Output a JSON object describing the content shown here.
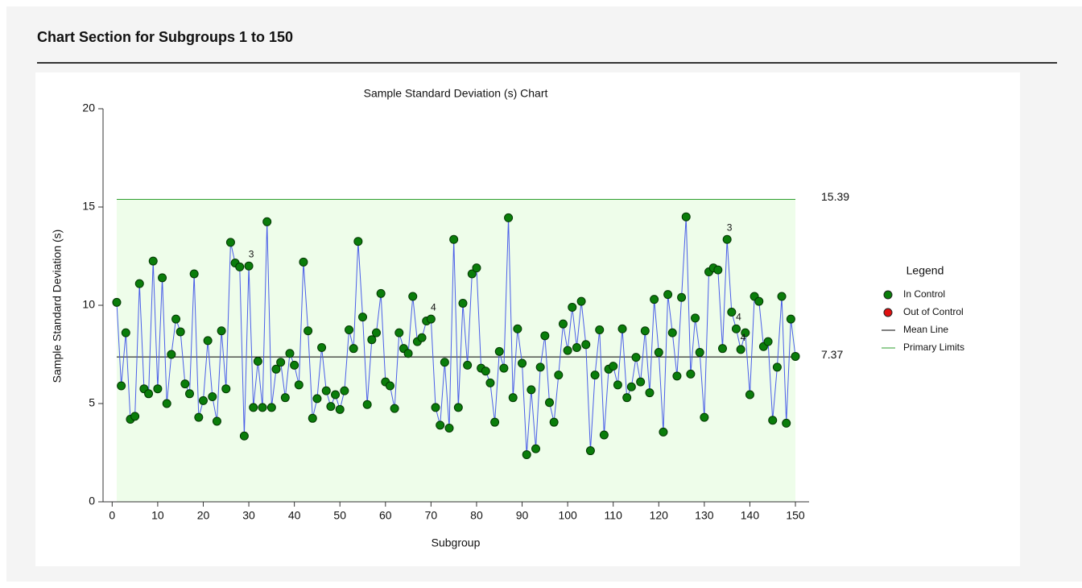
{
  "header": {
    "title": "Chart Section for Subgroups 1 to 150"
  },
  "chart_data": {
    "type": "control",
    "title": "Sample Standard Deviation (s) Chart",
    "x_label": "Subgroup",
    "y_label": "Sample Standard Deviation (s)",
    "xlim": [
      -2,
      153
    ],
    "ylim": [
      0,
      20
    ],
    "xticks": [
      0,
      10,
      20,
      30,
      40,
      50,
      60,
      70,
      80,
      90,
      100,
      110,
      120,
      130,
      140,
      150
    ],
    "yticks": [
      0,
      5,
      10,
      15,
      20
    ],
    "x": [
      1,
      2,
      3,
      4,
      5,
      6,
      7,
      8,
      9,
      10,
      11,
      12,
      13,
      14,
      15,
      16,
      17,
      18,
      19,
      20,
      21,
      22,
      23,
      24,
      25,
      26,
      27,
      28,
      29,
      30,
      31,
      32,
      33,
      34,
      35,
      36,
      37,
      38,
      39,
      40,
      41,
      42,
      43,
      44,
      45,
      46,
      47,
      48,
      49,
      50,
      51,
      52,
      53,
      54,
      55,
      56,
      57,
      58,
      59,
      60,
      61,
      62,
      63,
      64,
      65,
      66,
      67,
      68,
      69,
      70,
      71,
      72,
      73,
      74,
      75,
      76,
      77,
      78,
      79,
      80,
      81,
      82,
      83,
      84,
      85,
      86,
      87,
      88,
      89,
      90,
      91,
      92,
      93,
      94,
      95,
      96,
      97,
      98,
      99,
      100,
      101,
      102,
      103,
      104,
      105,
      106,
      107,
      108,
      109,
      110,
      111,
      112,
      113,
      114,
      115,
      116,
      117,
      118,
      119,
      120,
      121,
      122,
      123,
      124,
      125,
      126,
      127,
      128,
      129,
      130,
      131,
      132,
      133,
      134,
      135,
      136,
      137,
      138,
      139,
      140,
      141,
      142,
      143,
      144,
      145,
      146,
      147,
      148,
      149,
      150
    ],
    "values": [
      10.15,
      5.9,
      8.6,
      4.2,
      4.35,
      11.1,
      5.75,
      5.5,
      12.25,
      5.75,
      11.4,
      5.0,
      7.5,
      9.3,
      8.65,
      6.0,
      5.5,
      11.6,
      4.3,
      5.15,
      8.2,
      5.35,
      4.1,
      8.7,
      5.75,
      13.2,
      12.15,
      11.95,
      3.35,
      12.0,
      4.8,
      7.15,
      4.8,
      14.25,
      4.8,
      6.75,
      7.1,
      5.3,
      7.55,
      6.95,
      5.95,
      12.2,
      8.7,
      4.25,
      5.25,
      7.85,
      5.65,
      4.85,
      5.45,
      4.7,
      5.65,
      8.75,
      7.8,
      13.25,
      9.4,
      4.95,
      8.25,
      8.6,
      10.6,
      6.1,
      5.9,
      4.75,
      8.6,
      7.8,
      7.55,
      10.45,
      8.15,
      8.35,
      9.2,
      9.3,
      4.8,
      3.9,
      7.1,
      3.75,
      13.35,
      4.8,
      10.1,
      6.95,
      11.6,
      11.9,
      6.8,
      6.65,
      6.05,
      4.05,
      7.65,
      6.8,
      14.45,
      5.3,
      8.8,
      7.05,
      2.4,
      5.7,
      2.7,
      6.85,
      8.45,
      5.05,
      4.05,
      6.45,
      9.05,
      7.7,
      9.9,
      7.85,
      10.2,
      8.0,
      2.6,
      6.45,
      8.75,
      3.4,
      6.75,
      6.9,
      5.95,
      8.8,
      5.3,
      5.85,
      7.35,
      6.1,
      8.7,
      5.55,
      10.3,
      7.6,
      3.55,
      10.55,
      8.6,
      6.4,
      10.4,
      14.5,
      6.5,
      9.35,
      7.6,
      4.3,
      11.7,
      11.9,
      11.8,
      7.8,
      13.35,
      9.65,
      8.8,
      7.75,
      8.6,
      5.45,
      10.45,
      10.2,
      7.9,
      8.15,
      4.15,
      6.85,
      10.45,
      4.0,
      9.3,
      7.4
    ],
    "line_color": "#4a5ee8",
    "marker_color": "#0a7d0a",
    "mean": 7.37,
    "upper_limit": 15.39,
    "lower_limit": 0,
    "mean_color": "#000000",
    "limit_color": "#2e9e2e",
    "zone_color": "#eefdea",
    "annotations": [
      {
        "x": 30,
        "text": "3"
      },
      {
        "x": 70,
        "text": "4"
      },
      {
        "x": 135,
        "text": "3"
      },
      {
        "x": 137,
        "text": "4"
      },
      {
        "x": 138,
        "text": "4"
      }
    ],
    "legend": {
      "title": "Legend",
      "entries": [
        {
          "name": "In Control",
          "symbol": "circle",
          "color": "#0a7d0a"
        },
        {
          "name": "Out of Control",
          "symbol": "circle",
          "color": "#e01010"
        },
        {
          "name": "Mean Line",
          "symbol": "line",
          "color": "#000000"
        },
        {
          "name": "Primary Limits",
          "symbol": "line",
          "color": "#2e9e2e"
        }
      ]
    }
  }
}
